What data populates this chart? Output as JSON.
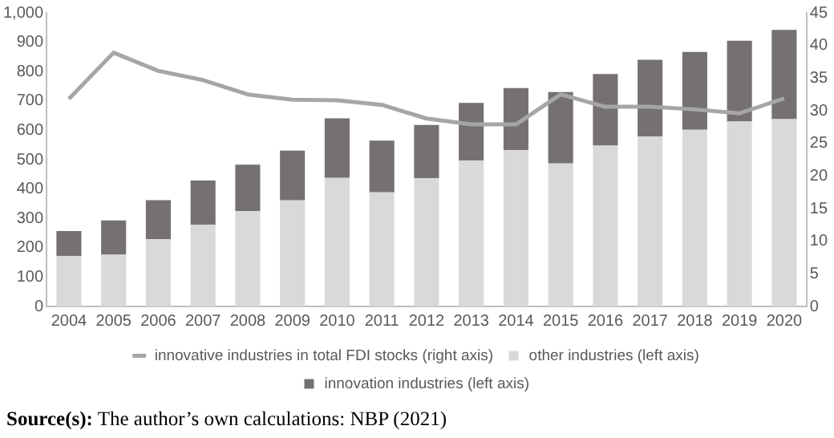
{
  "chart_data": {
    "type": "bar",
    "stacked": true,
    "categories": [
      "2004",
      "2005",
      "2006",
      "2007",
      "2008",
      "2009",
      "2010",
      "2011",
      "2012",
      "2013",
      "2014",
      "2015",
      "2016",
      "2017",
      "2018",
      "2019",
      "2020"
    ],
    "series": [
      {
        "name": "other industries (left axis)",
        "color": "#d9d9d9",
        "values": [
          172,
          176,
          229,
          279,
          325,
          361,
          438,
          389,
          437,
          497,
          532,
          487,
          548,
          579,
          602,
          630,
          638
        ]
      },
      {
        "name": "innovation industries (left axis)",
        "color": "#767171",
        "values": [
          85,
          117,
          133,
          150,
          158,
          170,
          203,
          176,
          181,
          196,
          212,
          243,
          244,
          261,
          265,
          275,
          304
        ]
      },
      {
        "name": "innovative industries in total FDI stocks (right axis)",
        "type": "line",
        "axis": "y2",
        "color": "#a6a6a6",
        "values": [
          31.8,
          38.9,
          36.1,
          34.7,
          32.5,
          31.7,
          31.6,
          30.9,
          28.8,
          27.9,
          27.9,
          32.5,
          30.6,
          30.6,
          30.2,
          29.6,
          31.9
        ]
      }
    ],
    "ylim": [
      0,
      1000
    ],
    "yticks": [
      0,
      100,
      200,
      300,
      400,
      500,
      600,
      700,
      800,
      900,
      {
        "value": 1000,
        "label": "1,000"
      }
    ],
    "y2lim": [
      0,
      45
    ],
    "y2ticks": [
      0,
      5,
      10,
      15,
      20,
      25,
      30,
      35,
      40,
      45
    ],
    "grid": false,
    "legend": "bottom",
    "marker": "none",
    "annotations": [
      "Source(s): The author’s own calculations: NBP (2021)"
    ]
  }
}
